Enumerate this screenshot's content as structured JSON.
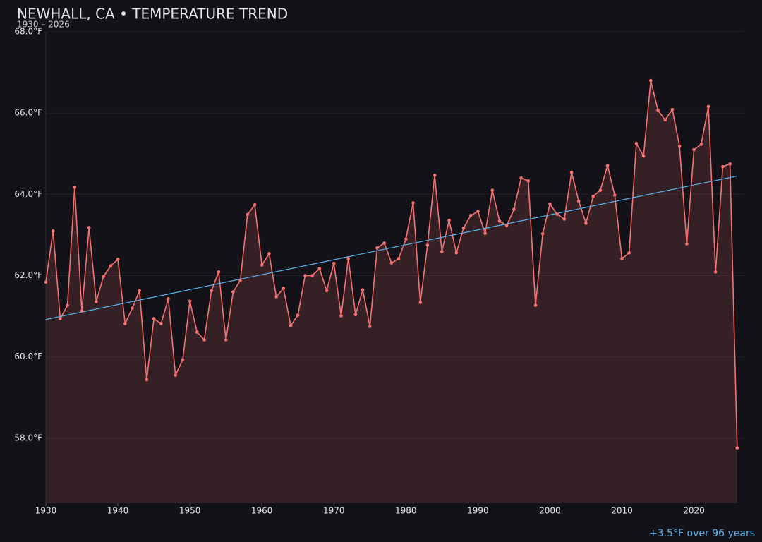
{
  "chart_data": {
    "type": "line",
    "title": "NEWHALL, CA • TEMPERATURE TREND",
    "subtitle": "1930 – 2026",
    "annotation": "+3.5°F over 96 years",
    "x": [
      1930,
      1931,
      1932,
      1933,
      1934,
      1935,
      1936,
      1937,
      1938,
      1939,
      1940,
      1941,
      1942,
      1943,
      1944,
      1945,
      1946,
      1947,
      1948,
      1949,
      1950,
      1951,
      1952,
      1953,
      1954,
      1955,
      1956,
      1957,
      1958,
      1959,
      1960,
      1961,
      1962,
      1963,
      1964,
      1965,
      1966,
      1967,
      1968,
      1969,
      1970,
      1971,
      1972,
      1973,
      1974,
      1975,
      1976,
      1977,
      1978,
      1979,
      1980,
      1981,
      1982,
      1983,
      1984,
      1985,
      1986,
      1987,
      1988,
      1989,
      1990,
      1991,
      1992,
      1993,
      1994,
      1995,
      1996,
      1997,
      1998,
      1999,
      2000,
      2001,
      2002,
      2003,
      2004,
      2005,
      2006,
      2007,
      2008,
      2009,
      2010,
      2011,
      2012,
      2013,
      2014,
      2015,
      2016,
      2017,
      2018,
      2019,
      2020,
      2021,
      2022,
      2023,
      2024,
      2025,
      2026
    ],
    "values": [
      61.84,
      63.1,
      60.94,
      61.27,
      64.17,
      61.13,
      63.18,
      61.36,
      61.98,
      62.24,
      62.4,
      60.82,
      61.2,
      61.63,
      59.44,
      60.94,
      60.82,
      61.43,
      59.55,
      59.93,
      61.37,
      60.61,
      60.42,
      61.63,
      62.09,
      60.42,
      61.6,
      61.88,
      63.5,
      63.74,
      62.26,
      62.54,
      61.48,
      61.69,
      60.77,
      61.03,
      62.0,
      62.0,
      62.17,
      61.63,
      62.3,
      61.01,
      62.42,
      61.04,
      61.65,
      60.75,
      62.68,
      62.8,
      62.31,
      62.42,
      62.9,
      63.79,
      61.34,
      62.75,
      64.47,
      62.59,
      63.36,
      62.56,
      63.17,
      63.48,
      63.58,
      63.04,
      64.1,
      63.34,
      63.23,
      63.63,
      64.4,
      64.33,
      61.27,
      63.03,
      63.76,
      63.51,
      63.39,
      64.54,
      63.83,
      63.29,
      63.95,
      64.1,
      64.71,
      63.98,
      62.42,
      62.56,
      65.25,
      64.94,
      66.8,
      66.07,
      65.83,
      66.09,
      65.18,
      62.78,
      65.1,
      65.23,
      66.16,
      62.09,
      64.68,
      64.75,
      57.76
    ],
    "color": "#f87171",
    "trend": {
      "x": [
        1930,
        2026
      ],
      "values": [
        60.92,
        64.45
      ],
      "color": "#5ab4ec"
    },
    "xlim": [
      1930,
      2027
    ],
    "xticks": [
      1930,
      1940,
      1950,
      1960,
      1970,
      1980,
      1990,
      2000,
      2010,
      2020
    ],
    "ylim": [
      56.4,
      68.0
    ],
    "yticks": [
      {
        "value": 58,
        "label": "58.0°F"
      },
      {
        "value": 60,
        "label": "60.0°F"
      },
      {
        "value": 62,
        "label": "62.0°F"
      },
      {
        "value": 64,
        "label": "64.0°F"
      },
      {
        "value": 66,
        "label": "66.0°F"
      },
      {
        "value": 68,
        "label": "68.0°F"
      }
    ],
    "grid": true
  }
}
